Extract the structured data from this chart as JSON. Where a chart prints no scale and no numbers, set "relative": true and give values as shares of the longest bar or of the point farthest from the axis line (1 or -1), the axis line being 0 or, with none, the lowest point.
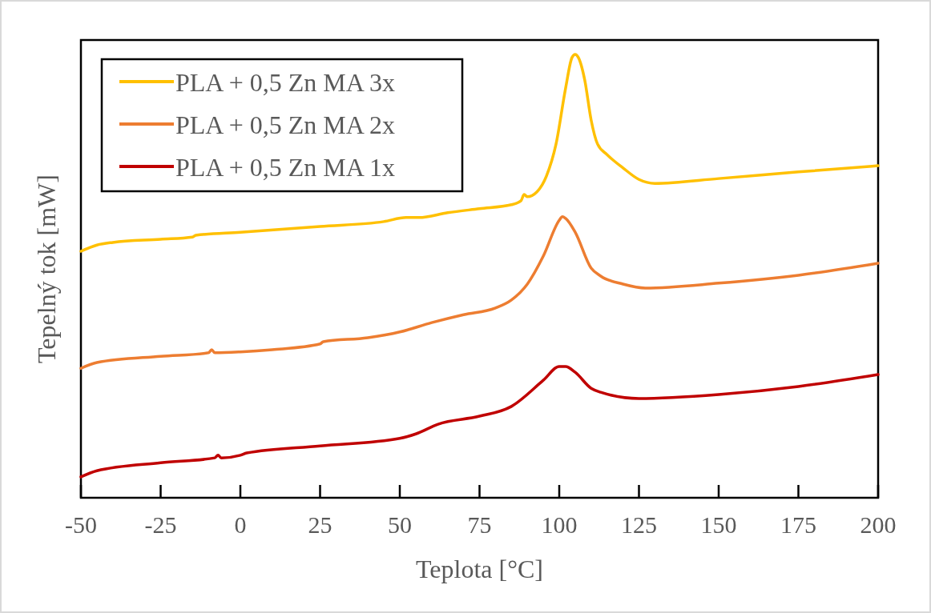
{
  "chart_data": {
    "type": "line",
    "xlabel": "Teplota [°C]",
    "ylabel": "Tepelný tok [mW]",
    "relative": true,
    "xlim": [
      -50,
      200
    ],
    "xticks": [
      -50,
      -25,
      0,
      25,
      50,
      75,
      100,
      125,
      150,
      175,
      200
    ],
    "grid": false,
    "legend": "top left",
    "marker": "none",
    "line_style": "solid",
    "series": [
      {
        "name": "PLA + 0,5 Zn MA 3x",
        "color": "#ffc000",
        "x": [
          -50,
          -45,
          -40,
          -25,
          -15,
          -14,
          0,
          25,
          45,
          52,
          56,
          65,
          75,
          85,
          88,
          89,
          90,
          93,
          96,
          99,
          102,
          104,
          105,
          106,
          108,
          110,
          112,
          115,
          120,
          125,
          130,
          150,
          175,
          200
        ],
        "values": [
          0.556,
          0.57,
          0.576,
          0.583,
          0.588,
          0.592,
          0.599,
          0.612,
          0.623,
          0.632,
          0.632,
          0.643,
          0.652,
          0.661,
          0.67,
          0.684,
          0.679,
          0.69,
          0.726,
          0.798,
          0.924,
          0.993,
          1,
          0.993,
          0.942,
          0.852,
          0.798,
          0.774,
          0.744,
          0.718,
          0.709,
          0.72,
          0.735,
          0.749
        ]
      },
      {
        "name": "PLA + 0,5 Zn MA 2x",
        "color": "#ed7d31",
        "x": [
          -50,
          -45,
          -25,
          -10,
          -9,
          -8,
          0,
          10,
          25,
          26,
          40,
          50,
          60,
          70,
          80,
          85,
          90,
          95,
          100,
          101,
          102,
          105,
          110,
          113,
          120,
          127,
          150,
          175,
          200
        ],
        "values": [
          0.292,
          0.305,
          0.319,
          0.327,
          0.334,
          0.327,
          0.329,
          0.334,
          0.347,
          0.352,
          0.361,
          0.374,
          0.395,
          0.413,
          0.428,
          0.446,
          0.482,
          0.545,
          0.626,
          0.634,
          0.63,
          0.599,
          0.518,
          0.5,
          0.482,
          0.473,
          0.484,
          0.502,
          0.529
        ]
      },
      {
        "name": "PLA + 0,5 Zn MA 1x",
        "color": "#c00000",
        "x": [
          -50,
          -45,
          -25,
          -8,
          -7,
          -6,
          0,
          2,
          25,
          50,
          55,
          62,
          75,
          85,
          95,
          100,
          102,
          105,
          110,
          113,
          125,
          150,
          175,
          200
        ],
        "values": [
          0.047,
          0.061,
          0.079,
          0.09,
          0.096,
          0.09,
          0.096,
          0.101,
          0.117,
          0.134,
          0.144,
          0.166,
          0.184,
          0.206,
          0.265,
          0.296,
          0.296,
          0.283,
          0.247,
          0.238,
          0.224,
          0.233,
          0.251,
          0.278
        ]
      }
    ]
  }
}
